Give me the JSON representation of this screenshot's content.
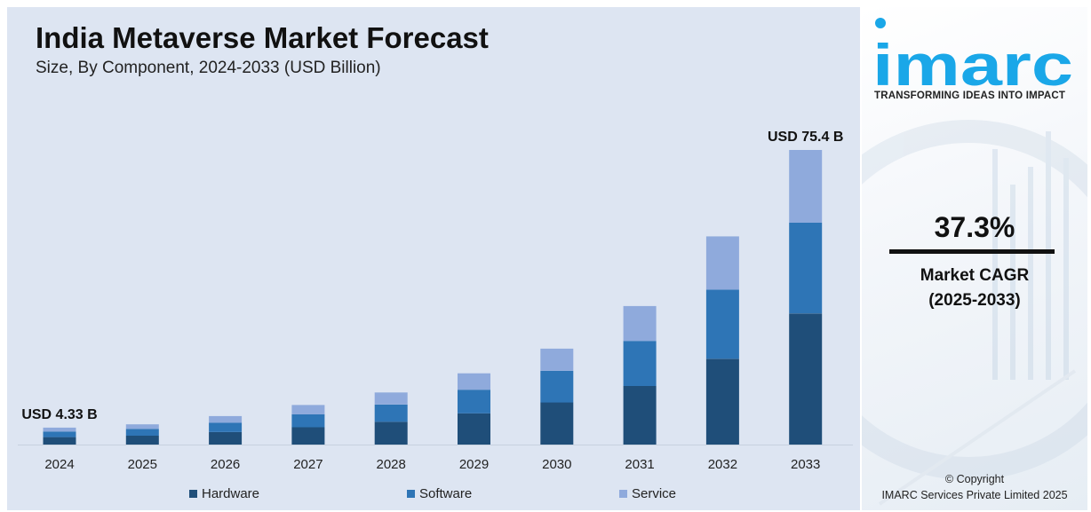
{
  "chart_data": {
    "type": "bar",
    "stacked": true,
    "title": "India Metaverse Market Forecast",
    "subtitle": "Size, By Component, 2024-2033 (USD Billion)",
    "xlabel": "",
    "ylabel": "",
    "ylim": [
      0,
      75.4
    ],
    "grid": false,
    "legend_position": "bottom",
    "categories": [
      "2024",
      "2025",
      "2026",
      "2027",
      "2028",
      "2029",
      "2030",
      "2031",
      "2032",
      "2033"
    ],
    "series": [
      {
        "name": "Hardware",
        "color": "#1f4e79",
        "values": [
          1.9,
          2.27,
          3.19,
          4.42,
          5.84,
          7.99,
          10.78,
          14.98,
          21.95,
          33.55
        ]
      },
      {
        "name": "Software",
        "color": "#2e75b6",
        "values": [
          1.44,
          1.72,
          2.41,
          3.34,
          4.41,
          6.04,
          8.1,
          11.54,
          17.7,
          23.22
        ]
      },
      {
        "name": "Service",
        "color": "#8faadc",
        "values": [
          0.99,
          1.18,
          1.7,
          2.38,
          3.07,
          4.21,
          5.67,
          8.94,
          13.63,
          18.63
        ]
      }
    ],
    "annotations": [
      {
        "category": "2024",
        "text": "USD 4.33 B"
      },
      {
        "category": "2033",
        "text": "USD 75.4 B"
      }
    ]
  },
  "side_panel": {
    "brand": "imarc",
    "tagline": "TRANSFORMING IDEAS INTO IMPACT",
    "cagr_value": "37.3%",
    "cagr_label": "Market CAGR",
    "cagr_period": "(2025-2033)",
    "copyright_line1": "© Copyright",
    "copyright_line2": "IMARC Services Private Limited 2025",
    "brand_color": "#1aa7e8"
  }
}
